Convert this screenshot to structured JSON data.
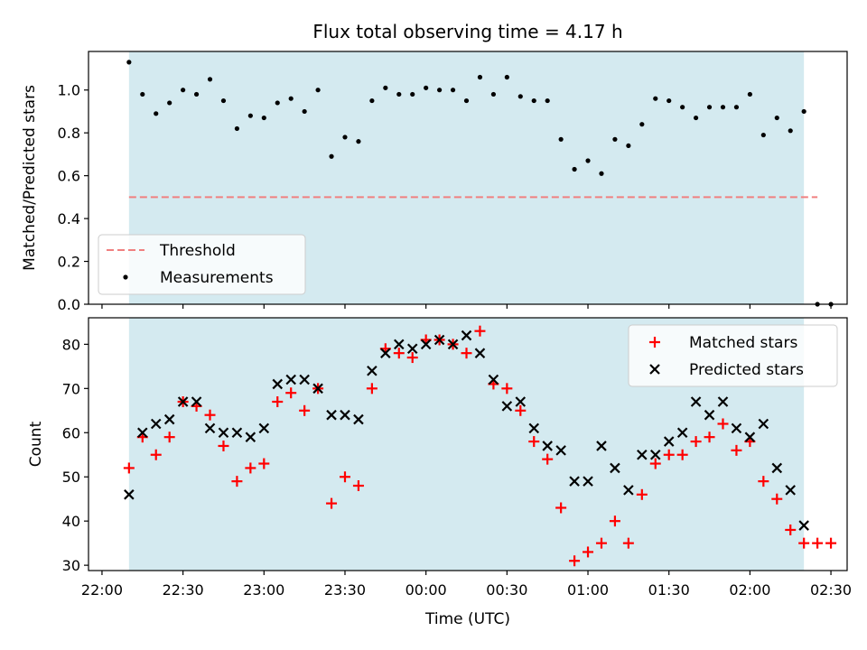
{
  "chart_data": [
    {
      "type": "scatter",
      "title": "Flux total observing time = 4.17 h",
      "ylabel": "Matched/Predicted stars",
      "xlabel": "",
      "xlim": [
        "21:55",
        "02:36"
      ],
      "ylim": [
        0,
        1.18
      ],
      "yticks": [
        0.0,
        0.2,
        0.4,
        0.6,
        0.8,
        1.0
      ],
      "ytick_labels": [
        "0.0",
        "0.2",
        "0.4",
        "0.6",
        "0.8",
        "1.0"
      ],
      "xticks": [
        "22:00",
        "22:30",
        "23:00",
        "23:30",
        "00:00",
        "00:30",
        "01:00",
        "01:30",
        "02:00",
        "02:30"
      ],
      "shaded_span": [
        "22:10",
        "02:20"
      ],
      "shade_color": "#d4eaf0",
      "threshold": {
        "name": "Threshold",
        "y": 0.5,
        "x": [
          "22:10",
          "02:25"
        ],
        "color": "#f08080"
      },
      "series": [
        {
          "name": "Measurements",
          "color": "#000000",
          "x": [
            "22:10",
            "22:15",
            "22:20",
            "22:25",
            "22:30",
            "22:35",
            "22:40",
            "22:45",
            "22:50",
            "22:55",
            "23:00",
            "23:05",
            "23:10",
            "23:15",
            "23:20",
            "23:25",
            "23:30",
            "23:35",
            "23:40",
            "23:45",
            "23:50",
            "23:55",
            "00:00",
            "00:05",
            "00:10",
            "00:15",
            "00:20",
            "00:25",
            "00:30",
            "00:35",
            "00:40",
            "00:45",
            "00:50",
            "00:55",
            "01:00",
            "01:05",
            "01:10",
            "01:15",
            "01:20",
            "01:25",
            "01:30",
            "01:35",
            "01:40",
            "01:45",
            "01:50",
            "01:55",
            "02:00",
            "02:05",
            "02:10",
            "02:15",
            "02:20",
            "02:25",
            "02:30"
          ],
          "values": [
            1.13,
            0.98,
            0.89,
            0.94,
            1.0,
            0.98,
            1.05,
            0.95,
            0.82,
            0.88,
            0.87,
            0.94,
            0.96,
            0.9,
            1.0,
            0.69,
            0.78,
            0.76,
            0.95,
            1.01,
            0.98,
            0.98,
            1.01,
            1.0,
            1.0,
            0.95,
            1.06,
            0.98,
            1.06,
            0.97,
            0.95,
            0.95,
            0.77,
            0.63,
            0.67,
            0.61,
            0.77,
            0.74,
            0.84,
            0.96,
            0.95,
            0.92,
            0.87,
            0.92,
            0.92,
            0.92,
            0.98,
            0.79,
            0.87,
            0.81,
            0.9,
            0.0,
            0.0
          ]
        }
      ],
      "legend": {
        "placement": "lower-left",
        "entries": [
          "Threshold",
          "Measurements"
        ]
      },
      "grid": false
    },
    {
      "type": "scatter",
      "title": "",
      "ylabel": "Count",
      "xlabel": "Time (UTC)",
      "xlim": [
        "21:55",
        "02:36"
      ],
      "ylim": [
        28.8,
        86
      ],
      "yticks": [
        30,
        40,
        50,
        60,
        70,
        80
      ],
      "ytick_labels": [
        "30",
        "40",
        "50",
        "60",
        "70",
        "80"
      ],
      "xticks": [
        "22:00",
        "22:30",
        "23:00",
        "23:30",
        "00:00",
        "00:30",
        "01:00",
        "01:30",
        "02:00",
        "02:30"
      ],
      "xtick_labels": [
        "22:00",
        "22:30",
        "23:00",
        "23:30",
        "00:00",
        "00:30",
        "01:00",
        "01:30",
        "02:00",
        "02:30"
      ],
      "shaded_span": [
        "22:10",
        "02:20"
      ],
      "shade_color": "#d4eaf0",
      "series": [
        {
          "name": "Matched stars",
          "marker": "+",
          "color": "#ff0000",
          "x": [
            "22:10",
            "22:15",
            "22:20",
            "22:25",
            "22:30",
            "22:35",
            "22:40",
            "22:45",
            "22:50",
            "22:55",
            "23:00",
            "23:05",
            "23:10",
            "23:15",
            "23:20",
            "23:25",
            "23:30",
            "23:35",
            "23:40",
            "23:45",
            "23:50",
            "23:55",
            "00:00",
            "00:05",
            "00:10",
            "00:15",
            "00:20",
            "00:25",
            "00:30",
            "00:35",
            "00:40",
            "00:45",
            "00:50",
            "00:55",
            "01:00",
            "01:05",
            "01:10",
            "01:15",
            "01:20",
            "01:25",
            "01:30",
            "01:35",
            "01:40",
            "01:45",
            "01:50",
            "01:55",
            "02:00",
            "02:05",
            "02:10",
            "02:15",
            "02:20",
            "02:25",
            "02:30"
          ],
          "values": [
            52,
            59,
            55,
            59,
            67,
            66,
            64,
            57,
            49,
            52,
            53,
            67,
            69,
            65,
            70,
            44,
            50,
            48,
            70,
            79,
            78,
            77,
            81,
            81,
            80,
            78,
            83,
            71,
            70,
            65,
            58,
            54,
            43,
            31,
            33,
            35,
            40,
            35,
            46,
            53,
            55,
            55,
            58,
            59,
            62,
            56,
            58,
            49,
            45,
            38,
            35,
            35,
            35
          ]
        },
        {
          "name": "Predicted stars",
          "marker": "x",
          "color": "#000000",
          "x": [
            "22:10",
            "22:15",
            "22:20",
            "22:25",
            "22:30",
            "22:35",
            "22:40",
            "22:45",
            "22:50",
            "22:55",
            "23:00",
            "23:05",
            "23:10",
            "23:15",
            "23:20",
            "23:25",
            "23:30",
            "23:35",
            "23:40",
            "23:45",
            "23:50",
            "23:55",
            "00:00",
            "00:05",
            "00:10",
            "00:15",
            "00:20",
            "00:25",
            "00:30",
            "00:35",
            "00:40",
            "00:45",
            "00:50",
            "00:55",
            "01:00",
            "01:05",
            "01:10",
            "01:15",
            "01:20",
            "01:25",
            "01:30",
            "01:35",
            "01:40",
            "01:45",
            "01:50",
            "01:55",
            "02:00",
            "02:05",
            "02:10",
            "02:15",
            "02:20"
          ],
          "values": [
            46,
            60,
            62,
            63,
            67,
            67,
            61,
            60,
            60,
            59,
            61,
            71,
            72,
            72,
            70,
            64,
            64,
            63,
            74,
            78,
            80,
            79,
            80,
            81,
            80,
            82,
            78,
            72,
            66,
            67,
            61,
            57,
            56,
            49,
            49,
            57,
            52,
            47,
            55,
            55,
            58,
            60,
            67,
            64,
            67,
            61,
            59,
            62,
            52,
            47,
            39
          ]
        }
      ],
      "legend": {
        "placement": "upper-right",
        "entries": [
          "Matched stars",
          "Predicted stars"
        ]
      },
      "grid": false
    }
  ]
}
